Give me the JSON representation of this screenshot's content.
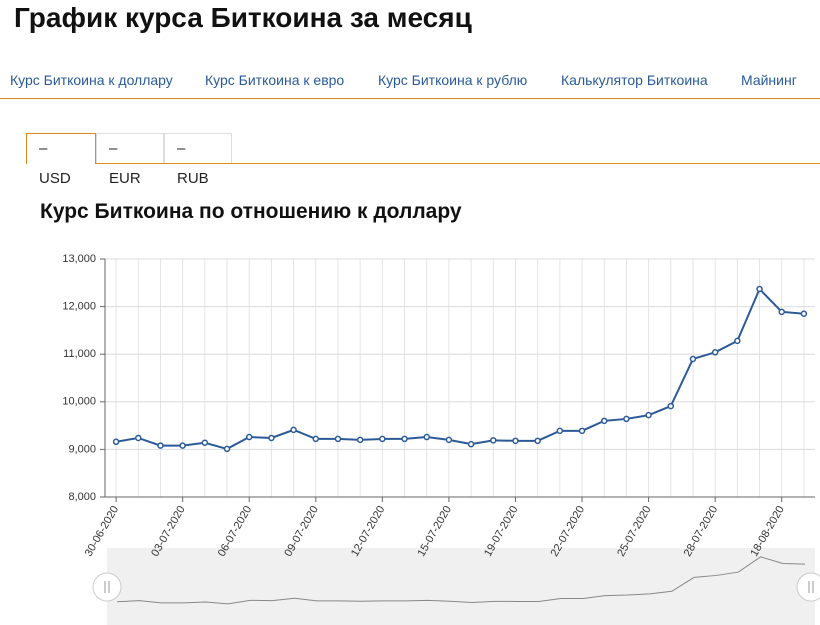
{
  "header": {
    "title": "График курса Биткоина за месяц"
  },
  "nav": [
    "Курс Биткоина к доллару",
    "Курс Биткоина к евро",
    "Курс Биткоина к рублю",
    "Калькулятор Биткоина",
    "Майнинг"
  ],
  "tabs": [
    "USD",
    "EUR",
    "RUB"
  ],
  "chart_data": {
    "type": "line",
    "title": "Курс Биткоина по отношению к доллару",
    "categories": [
      "30-06-2020",
      null,
      null,
      "03-07-2020",
      null,
      null,
      "06-07-2020",
      null,
      null,
      "09-07-2020",
      null,
      null,
      "12-07-2020",
      null,
      null,
      "15-07-2020",
      null,
      null,
      "19-07-2020",
      null,
      null,
      "22-07-2020",
      null,
      null,
      "25-07-2020",
      null,
      null,
      "28-07-2020",
      null,
      null,
      "18-08-2020",
      null
    ],
    "values": [
      9160,
      9240,
      9080,
      9080,
      9140,
      9010,
      9260,
      9240,
      9410,
      9220,
      9220,
      9200,
      9220,
      9220,
      9260,
      9200,
      9110,
      9190,
      9180,
      9180,
      9390,
      9390,
      9600,
      9640,
      9720,
      9910,
      10900,
      11040,
      11280,
      12370,
      11890,
      11850
    ],
    "color": "#2c5a98",
    "ylim": [
      8000,
      13000
    ],
    "yticks": [
      {
        "value": 8000,
        "label": "8,000"
      },
      {
        "value": 9000,
        "label": "9,000"
      },
      {
        "value": 10000,
        "label": "10,000"
      },
      {
        "value": 11000,
        "label": "11,000"
      },
      {
        "value": 12000,
        "label": "12,000"
      },
      {
        "value": 13000,
        "label": "13,000"
      }
    ],
    "grid": true
  }
}
